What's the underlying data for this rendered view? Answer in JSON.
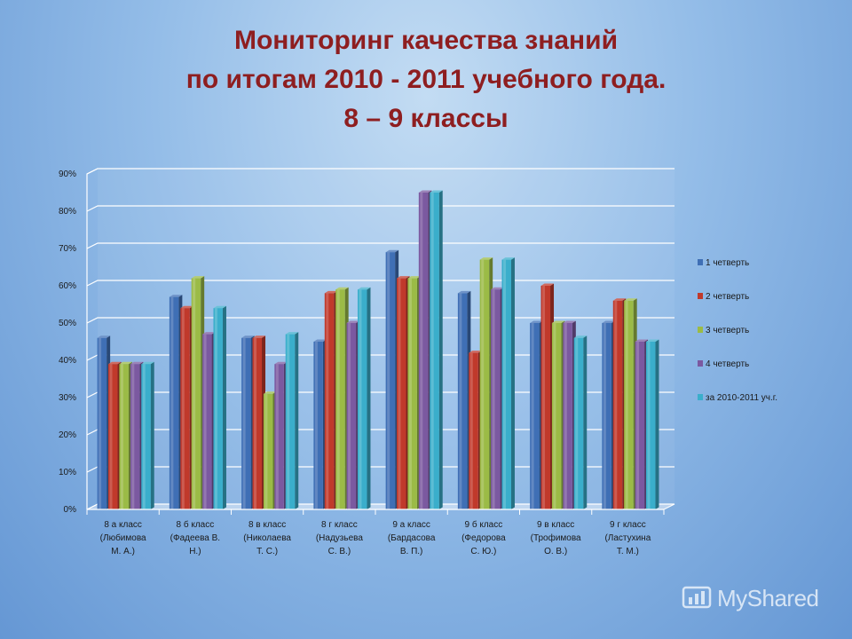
{
  "chart_data": {
    "type": "bar",
    "title_lines": [
      "Мониторинг качества знаний",
      "по итогам 2010 - 2011 учебного года.",
      "8 – 9  классы"
    ],
    "categories": [
      [
        "8 а класс",
        "(Любимова",
        "М. А.)"
      ],
      [
        "8 б класс",
        "(Фадеева В.",
        "Н.)"
      ],
      [
        "8 в класс",
        "(Николаева",
        "Т. С.)"
      ],
      [
        "8 г класс",
        "(Надузьева",
        "С. В.)"
      ],
      [
        "9 а класс",
        "(Бардасова",
        "В. П.)"
      ],
      [
        "9 б класс",
        "(Федорова",
        "С. Ю.)"
      ],
      [
        "9 в класс",
        "(Трофимова",
        "О. В.)"
      ],
      [
        "9 г класс",
        "(Ластухина",
        "Т. М.)"
      ]
    ],
    "series": [
      {
        "name": "1 четверть",
        "color": "#3f6fb5",
        "values": [
          46,
          57,
          46,
          45,
          69,
          58,
          50,
          50
        ]
      },
      {
        "name": "2 четверть",
        "color": "#c0392b",
        "values": [
          39,
          54,
          46,
          58,
          62,
          42,
          60,
          56
        ]
      },
      {
        "name": "3 четверть",
        "color": "#9bbb46",
        "values": [
          39,
          62,
          31,
          59,
          62,
          67,
          50,
          56
        ]
      },
      {
        "name": "4 четверть",
        "color": "#7b59a0",
        "values": [
          39,
          47,
          39,
          50,
          85,
          59,
          50,
          45
        ]
      },
      {
        "name": "за 2010-2011 уч.г.",
        "color": "#3aaecb",
        "values": [
          39,
          54,
          47,
          59,
          85,
          67,
          46,
          45
        ]
      }
    ],
    "ylim": [
      0,
      90
    ],
    "yticks": [
      "0%",
      "10%",
      "20%",
      "30%",
      "40%",
      "50%",
      "60%",
      "70%",
      "80%",
      "90%"
    ],
    "grid": true,
    "legend_position": "right"
  },
  "watermark": {
    "text": "MyShared"
  }
}
